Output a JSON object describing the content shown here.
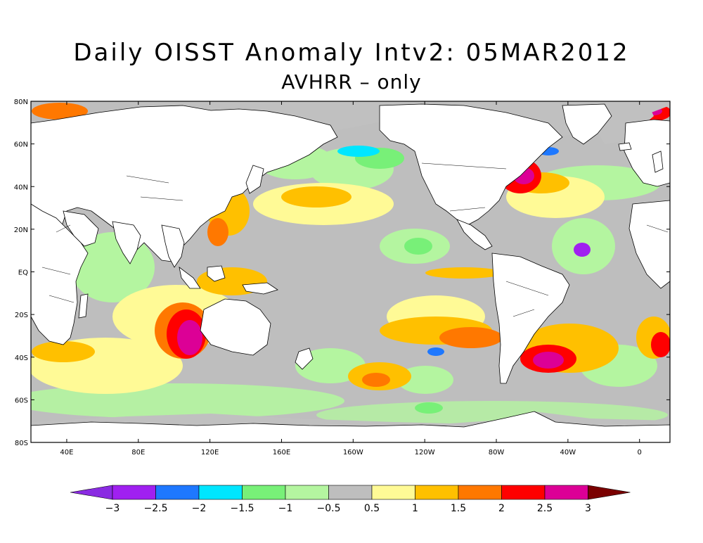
{
  "title": "Daily OISST Anomaly Intv2: 05MAR2012",
  "subtitle": "AVHRR – only",
  "lat_labels": [
    "80N",
    "60N",
    "40N",
    "20N",
    "EQ",
    "20S",
    "40S",
    "60S",
    "80S"
  ],
  "lon_labels": [
    "40E",
    "80E",
    "120E",
    "160E",
    "160W",
    "120W",
    "80W",
    "40W",
    "0"
  ],
  "colorbar": {
    "colors": [
      "#8a2be2",
      "#a020f0",
      "#1e78ff",
      "#00e6ff",
      "#78f078",
      "#b4f5a0",
      "#bebebe",
      "#fffa96",
      "#ffc000",
      "#ff7800",
      "#ff0000",
      "#dc0096",
      "#7a0000"
    ],
    "tick_labels": [
      "−3",
      "−2.5",
      "−2",
      "−1.5",
      "−1",
      "−0.5",
      "0.5",
      "1",
      "1.5",
      "2",
      "2.5",
      "3"
    ]
  },
  "colors": {
    "land": "#ffffff",
    "ice": "#c0c0c0",
    "ocean_neutral": "#bebebe"
  }
}
